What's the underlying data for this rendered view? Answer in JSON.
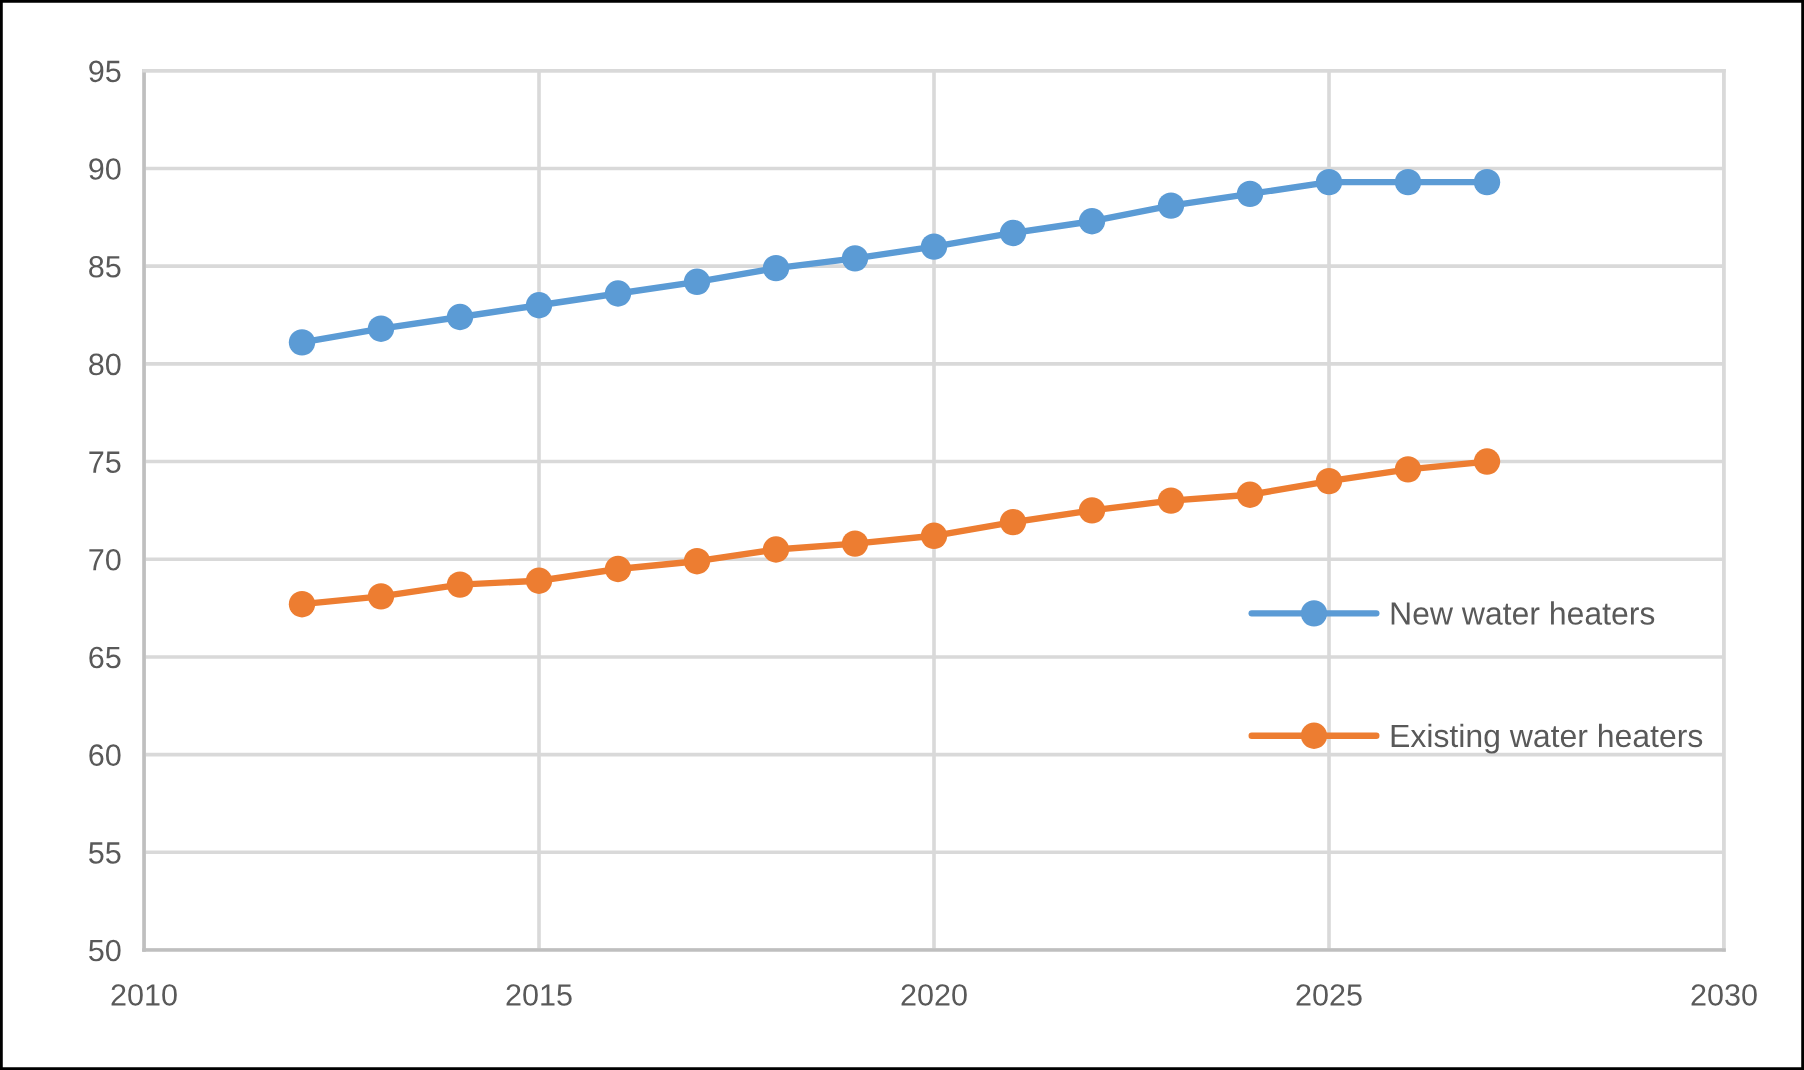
{
  "chart_data": {
    "type": "line",
    "x": [
      2012,
      2013,
      2014,
      2015,
      2016,
      2017,
      2018,
      2019,
      2020,
      2021,
      2022,
      2023,
      2024,
      2025,
      2026,
      2027
    ],
    "series": [
      {
        "name": "New water heaters",
        "color": "#5b9bd5",
        "values": [
          81.1,
          81.8,
          82.4,
          83.0,
          83.6,
          84.2,
          84.9,
          85.4,
          86.0,
          86.7,
          87.3,
          88.1,
          88.7,
          89.3,
          89.3,
          89.3
        ]
      },
      {
        "name": "Existing water heaters",
        "color": "#ed7d31",
        "values": [
          67.7,
          68.1,
          68.7,
          68.9,
          69.5,
          69.9,
          70.5,
          70.8,
          71.2,
          71.9,
          72.5,
          73.0,
          73.3,
          74.0,
          74.6,
          75.0
        ]
      }
    ],
    "xlim": [
      2010,
      2030
    ],
    "xticks": [
      2010,
      2015,
      2020,
      2025,
      2030
    ],
    "ylim": [
      50,
      95
    ],
    "yticks": [
      50,
      55,
      60,
      65,
      70,
      75,
      80,
      85,
      90,
      95
    ],
    "grid": true,
    "legend": "right",
    "marker": "circle",
    "line_style": "solid"
  }
}
